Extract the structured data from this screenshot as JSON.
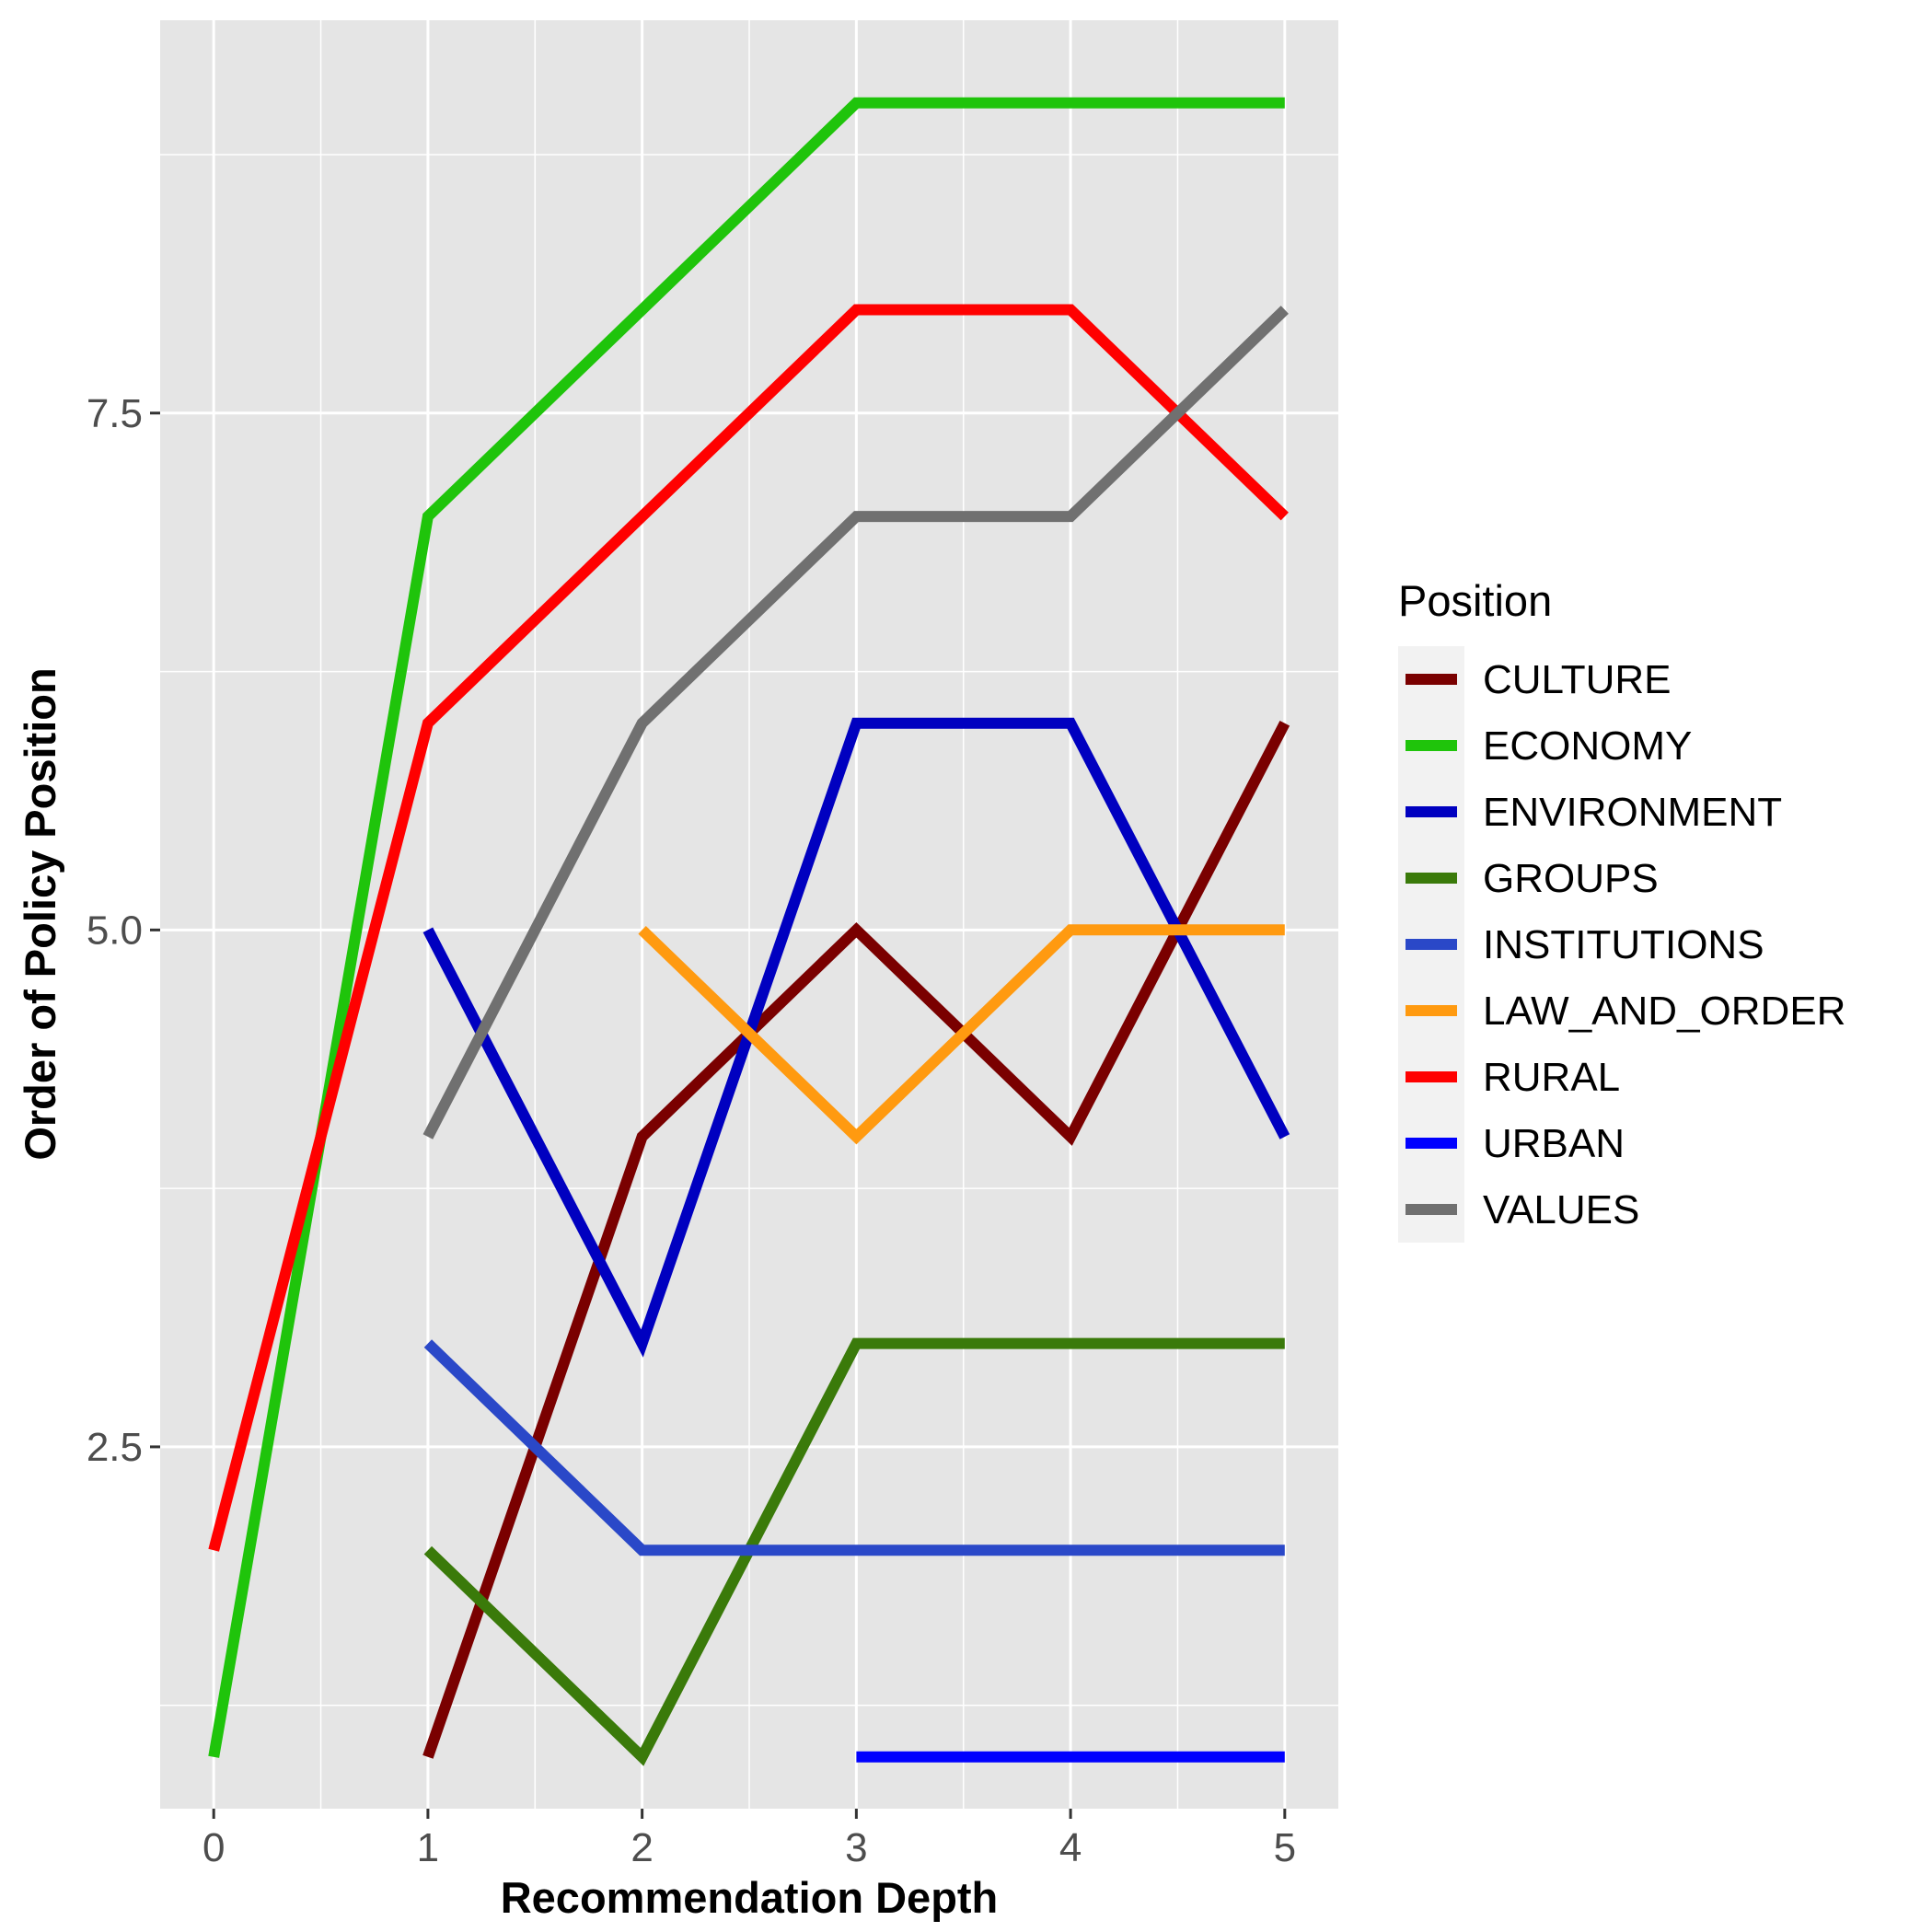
{
  "chart_data": {
    "type": "line",
    "title": "",
    "xlabel": "Recommendation Depth",
    "ylabel": "Order of Policy Position",
    "xlim": [
      -0.25,
      5.25
    ],
    "ylim": [
      0.75,
      9.4
    ],
    "x_ticks": [
      0,
      1,
      2,
      3,
      4,
      5
    ],
    "x_tick_labels": [
      "0",
      "1",
      "2",
      "3",
      "4",
      "5"
    ],
    "y_ticks": [
      2.5,
      5.0,
      7.5
    ],
    "y_tick_labels": [
      "2.5",
      "5.0",
      "7.5"
    ],
    "grid": true,
    "legend": {
      "title": "Position",
      "placement": "right"
    },
    "series": [
      {
        "name": "CULTURE",
        "color": "#7a0000",
        "points": [
          [
            1,
            1
          ],
          [
            2,
            4
          ],
          [
            3,
            5
          ],
          [
            4,
            4
          ],
          [
            5,
            6
          ]
        ]
      },
      {
        "name": "ECONOMY",
        "color": "#1fc40b",
        "points": [
          [
            0,
            1
          ],
          [
            1,
            7
          ],
          [
            2,
            8
          ],
          [
            3,
            9
          ],
          [
            4,
            9
          ],
          [
            5,
            9
          ]
        ]
      },
      {
        "name": "ENVIRONMENT",
        "color": "#0000c0",
        "points": [
          [
            1,
            5
          ],
          [
            2,
            3
          ],
          [
            3,
            6
          ],
          [
            4,
            6
          ],
          [
            5,
            4
          ]
        ]
      },
      {
        "name": "GROUPS",
        "color": "#3a7a0a",
        "points": [
          [
            1,
            2
          ],
          [
            2,
            1
          ],
          [
            3,
            3
          ],
          [
            4,
            3
          ],
          [
            5,
            3
          ]
        ]
      },
      {
        "name": "INSTITUTIONS",
        "color": "#2a48c8",
        "points": [
          [
            1,
            3
          ],
          [
            2,
            2
          ],
          [
            3,
            2
          ],
          [
            4,
            2
          ],
          [
            5,
            2
          ]
        ]
      },
      {
        "name": "LAW_AND_ORDER",
        "color": "#ff9a10",
        "points": [
          [
            2,
            5
          ],
          [
            3,
            4
          ],
          [
            4,
            5
          ],
          [
            5,
            5
          ]
        ]
      },
      {
        "name": "RURAL",
        "color": "#ff0000",
        "points": [
          [
            0,
            2
          ],
          [
            1,
            6
          ],
          [
            2,
            7
          ],
          [
            3,
            8
          ],
          [
            4,
            8
          ],
          [
            5,
            7
          ]
        ]
      },
      {
        "name": "URBAN",
        "color": "#0000ff",
        "points": [
          [
            3,
            1
          ],
          [
            4,
            1
          ],
          [
            5,
            1
          ]
        ]
      },
      {
        "name": "VALUES",
        "color": "#707070",
        "points": [
          [
            1,
            4
          ],
          [
            2,
            6
          ],
          [
            3,
            7
          ],
          [
            4,
            7
          ],
          [
            5,
            8
          ]
        ]
      }
    ]
  }
}
